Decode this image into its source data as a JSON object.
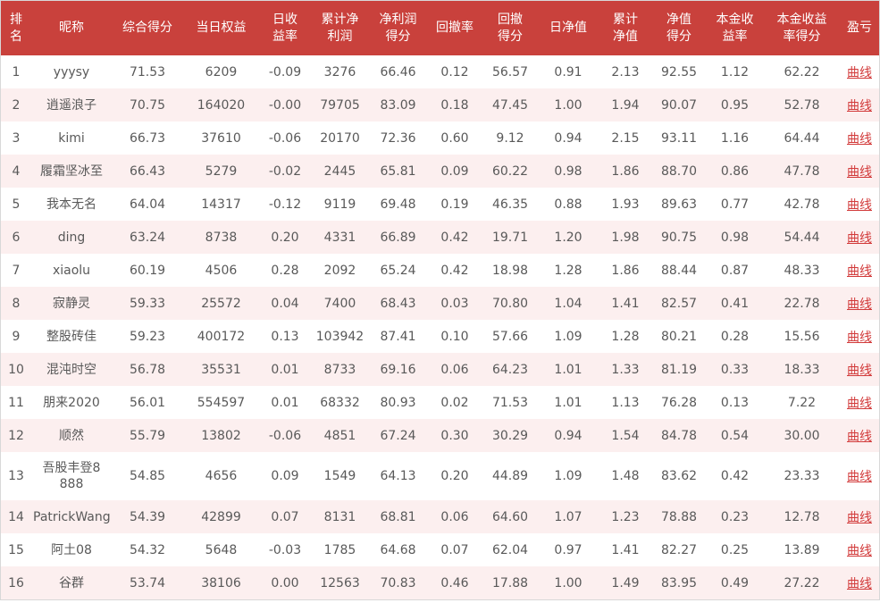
{
  "headers": {
    "rank": "排名",
    "nickname": "昵称",
    "composite_score": "综合得分",
    "daily_equity": "当日权益",
    "daily_return": "日收益率",
    "cum_net_profit": "累计净利润",
    "net_profit_score": "净利润得分",
    "drawdown": "回撤率",
    "drawdown_score": "回撤得分",
    "daily_nav": "日净值",
    "cum_nav": "累计净值",
    "nav_score": "净值得分",
    "principal_return": "本金收益率",
    "principal_return_score": "本金收益率得分",
    "pnl": "盈亏"
  },
  "link_label": "曲线",
  "rows": [
    {
      "rank": "1",
      "name": "yyysy",
      "score": "71.53",
      "equity": "6209",
      "daily_ret": "-0.09",
      "cum_profit": "3276",
      "profit_score": "66.46",
      "drawdown": "0.12",
      "dd_score": "56.57",
      "daily_nav": "0.91",
      "cum_nav": "2.13",
      "nav_score": "92.55",
      "principal_ret": "1.12",
      "pr_score": "62.22"
    },
    {
      "rank": "2",
      "name": "逍遥浪子",
      "score": "70.75",
      "equity": "164020",
      "daily_ret": "-0.00",
      "cum_profit": "79705",
      "profit_score": "83.09",
      "drawdown": "0.18",
      "dd_score": "47.45",
      "daily_nav": "1.00",
      "cum_nav": "1.94",
      "nav_score": "90.07",
      "principal_ret": "0.95",
      "pr_score": "52.78"
    },
    {
      "rank": "3",
      "name": "kimi",
      "score": "66.73",
      "equity": "37610",
      "daily_ret": "-0.06",
      "cum_profit": "20170",
      "profit_score": "72.36",
      "drawdown": "0.60",
      "dd_score": "9.12",
      "daily_nav": "0.94",
      "cum_nav": "2.15",
      "nav_score": "93.11",
      "principal_ret": "1.16",
      "pr_score": "64.44"
    },
    {
      "rank": "4",
      "name": "履霜坚冰至",
      "score": "66.43",
      "equity": "5279",
      "daily_ret": "-0.02",
      "cum_profit": "2445",
      "profit_score": "65.81",
      "drawdown": "0.09",
      "dd_score": "60.22",
      "daily_nav": "0.98",
      "cum_nav": "1.86",
      "nav_score": "88.70",
      "principal_ret": "0.86",
      "pr_score": "47.78"
    },
    {
      "rank": "5",
      "name": "我本无名",
      "score": "64.04",
      "equity": "14317",
      "daily_ret": "-0.12",
      "cum_profit": "9119",
      "profit_score": "69.48",
      "drawdown": "0.19",
      "dd_score": "46.35",
      "daily_nav": "0.88",
      "cum_nav": "1.93",
      "nav_score": "89.63",
      "principal_ret": "0.77",
      "pr_score": "42.78"
    },
    {
      "rank": "6",
      "name": "ding",
      "score": "63.24",
      "equity": "8738",
      "daily_ret": "0.20",
      "cum_profit": "4331",
      "profit_score": "66.89",
      "drawdown": "0.42",
      "dd_score": "19.71",
      "daily_nav": "1.20",
      "cum_nav": "1.98",
      "nav_score": "90.75",
      "principal_ret": "0.98",
      "pr_score": "54.44"
    },
    {
      "rank": "7",
      "name": "xiaolu",
      "score": "60.19",
      "equity": "4506",
      "daily_ret": "0.28",
      "cum_profit": "2092",
      "profit_score": "65.24",
      "drawdown": "0.42",
      "dd_score": "18.98",
      "daily_nav": "1.28",
      "cum_nav": "1.86",
      "nav_score": "88.44",
      "principal_ret": "0.87",
      "pr_score": "48.33"
    },
    {
      "rank": "8",
      "name": "寂静灵",
      "score": "59.33",
      "equity": "25572",
      "daily_ret": "0.04",
      "cum_profit": "7400",
      "profit_score": "68.43",
      "drawdown": "0.03",
      "dd_score": "70.80",
      "daily_nav": "1.04",
      "cum_nav": "1.41",
      "nav_score": "82.57",
      "principal_ret": "0.41",
      "pr_score": "22.78"
    },
    {
      "rank": "9",
      "name": "整股砖佳",
      "score": "59.23",
      "equity": "400172",
      "daily_ret": "0.13",
      "cum_profit": "103942",
      "profit_score": "87.41",
      "drawdown": "0.10",
      "dd_score": "57.66",
      "daily_nav": "1.09",
      "cum_nav": "1.28",
      "nav_score": "80.21",
      "principal_ret": "0.28",
      "pr_score": "15.56"
    },
    {
      "rank": "10",
      "name": "混沌时空",
      "score": "56.78",
      "equity": "35531",
      "daily_ret": "0.01",
      "cum_profit": "8733",
      "profit_score": "69.16",
      "drawdown": "0.06",
      "dd_score": "64.23",
      "daily_nav": "1.01",
      "cum_nav": "1.33",
      "nav_score": "81.19",
      "principal_ret": "0.33",
      "pr_score": "18.33"
    },
    {
      "rank": "11",
      "name": "朋来2020",
      "score": "56.01",
      "equity": "554597",
      "daily_ret": "0.01",
      "cum_profit": "68332",
      "profit_score": "80.93",
      "drawdown": "0.02",
      "dd_score": "71.53",
      "daily_nav": "1.01",
      "cum_nav": "1.13",
      "nav_score": "76.28",
      "principal_ret": "0.13",
      "pr_score": "7.22"
    },
    {
      "rank": "12",
      "name": "顺然",
      "score": "55.79",
      "equity": "13802",
      "daily_ret": "-0.06",
      "cum_profit": "4851",
      "profit_score": "67.24",
      "drawdown": "0.30",
      "dd_score": "30.29",
      "daily_nav": "0.94",
      "cum_nav": "1.54",
      "nav_score": "84.78",
      "principal_ret": "0.54",
      "pr_score": "30.00"
    },
    {
      "rank": "13",
      "name": "吾股丰登8888",
      "score": "54.85",
      "equity": "4656",
      "daily_ret": "0.09",
      "cum_profit": "1549",
      "profit_score": "64.13",
      "drawdown": "0.20",
      "dd_score": "44.89",
      "daily_nav": "1.09",
      "cum_nav": "1.48",
      "nav_score": "83.62",
      "principal_ret": "0.42",
      "pr_score": "23.33"
    },
    {
      "rank": "14",
      "name": "PatrickWang",
      "score": "54.39",
      "equity": "42899",
      "daily_ret": "0.07",
      "cum_profit": "8131",
      "profit_score": "68.81",
      "drawdown": "0.06",
      "dd_score": "64.60",
      "daily_nav": "1.07",
      "cum_nav": "1.23",
      "nav_score": "78.88",
      "principal_ret": "0.23",
      "pr_score": "12.78"
    },
    {
      "rank": "15",
      "name": "阿土08",
      "score": "54.32",
      "equity": "5648",
      "daily_ret": "-0.03",
      "cum_profit": "1785",
      "profit_score": "64.68",
      "drawdown": "0.07",
      "dd_score": "62.04",
      "daily_nav": "0.97",
      "cum_nav": "1.41",
      "nav_score": "82.27",
      "principal_ret": "0.25",
      "pr_score": "13.89"
    },
    {
      "rank": "16",
      "name": "谷群",
      "score": "53.74",
      "equity": "38106",
      "daily_ret": "0.00",
      "cum_profit": "12563",
      "profit_score": "70.83",
      "drawdown": "0.46",
      "dd_score": "17.88",
      "daily_nav": "1.00",
      "cum_nav": "1.49",
      "nav_score": "83.95",
      "principal_ret": "0.49",
      "pr_score": "27.22"
    }
  ],
  "colors": {
    "header_bg": "#c9413c",
    "header_text": "#ffffff",
    "row_alt_bg": "#fcefef",
    "cell_text": "#595959",
    "link": "#d23a3a"
  }
}
